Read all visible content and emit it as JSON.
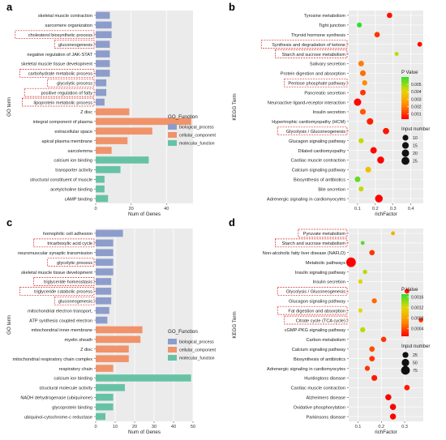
{
  "colors": {
    "biological_process": "#8d9dcb",
    "cellular_component": "#f0936a",
    "molecular_function": "#67c2a5",
    "highlight_box": "#d62728",
    "panel_bg": "#ebebeb",
    "pvalue_low": "#ff0000",
    "pvalue_high": "#2ee02e"
  },
  "chart_data": [
    {
      "panel": "a",
      "type": "bar",
      "orientation": "horizontal",
      "xlabel": "Num of Genes",
      "ylabel": "GO term",
      "xlim": [
        0,
        55
      ],
      "xticks": [
        0,
        20,
        40
      ],
      "legend_title": "GO_Function",
      "legend": [
        "biological_process",
        "cellular_component",
        "molecular_function"
      ],
      "categories": [
        "skeletal muscle contraction",
        "sarcomere organization",
        "cholesterol biosynthetic process",
        "gluconeogenesis",
        "negative regulation of JAK-STAT",
        "skeletal muscle tissue development",
        "carbohydrate metabolic process",
        "glycolytic process",
        "positive regulation of fatty",
        "lipoprotein metabolic process",
        "Z disc",
        "integral component of plasma",
        "extracellular space",
        "apical plasma membrane",
        "sarcolemma",
        "calcium ion binding",
        "transporter activity",
        "structural constituent of muscle",
        "acetylcholine binding",
        "cAMP binding"
      ],
      "values": [
        8,
        9,
        9,
        8,
        8,
        8,
        8,
        6,
        6,
        5,
        19,
        54,
        32,
        18,
        9,
        30,
        14,
        5,
        5,
        7
      ],
      "groups": [
        "biological_process",
        "biological_process",
        "biological_process",
        "biological_process",
        "biological_process",
        "biological_process",
        "biological_process",
        "biological_process",
        "biological_process",
        "biological_process",
        "cellular_component",
        "cellular_component",
        "cellular_component",
        "cellular_component",
        "cellular_component",
        "molecular_function",
        "molecular_function",
        "molecular_function",
        "molecular_function",
        "molecular_function"
      ],
      "highlighted": [
        2,
        3,
        6,
        7,
        8,
        9
      ]
    },
    {
      "panel": "b",
      "type": "scatter",
      "xlabel": "richFactor",
      "ylabel": "KEGG Term",
      "xlim": [
        0.05,
        0.47
      ],
      "xticks": [
        0.1,
        0.2,
        0.3,
        0.4
      ],
      "size_legend_title": "Input number",
      "size_legend": [
        10,
        15,
        20,
        25
      ],
      "color_legend_title": "P Value",
      "color_range": [
        0.0003,
        0.006
      ],
      "color_ticks": [
        0.005,
        0.004,
        0.003,
        0.002,
        0.001
      ],
      "categories": [
        "Tyrosine metabolism",
        "Tight junction",
        "Thyroid hormone synthesis",
        "Synthesis and degradation of ketone",
        "Starch and sucrose metabolism",
        "Salivary secretion",
        "Protein digestion and absorption",
        "Pentose phosphate pathway",
        "Pancreatic secretion",
        "Neuroactive ligand-receptor interaction",
        "Insulin secretion",
        "Hypertrophic cardiomyopathy (HCM)",
        "Glycolysis / Gluconeogenesis",
        "Glucagon signaling pathway",
        "Dilated cardiomyopathy",
        "Cardiac muscle contraction",
        "Calcium signaling pathway",
        "Biosynthesis of antibiotics",
        "Bile secretion",
        "Adrenergic signaling in cardiomyocytes"
      ],
      "x": [
        0.28,
        0.11,
        0.21,
        0.45,
        0.32,
        0.12,
        0.13,
        0.14,
        0.13,
        0.1,
        0.13,
        0.17,
        0.26,
        0.12,
        0.19,
        0.23,
        0.16,
        0.1,
        0.12,
        0.22
      ],
      "input_number": [
        8,
        6,
        8,
        5,
        3,
        9,
        10,
        7,
        9,
        20,
        10,
        14,
        13,
        7,
        14,
        17,
        10,
        9,
        6,
        23
      ],
      "pvalue": [
        0.0005,
        0.006,
        0.001,
        0.0004,
        0.0045,
        0.002,
        0.0018,
        0.0022,
        0.001,
        0.0004,
        0.0015,
        0.0007,
        0.0006,
        0.0045,
        0.0004,
        0.0003,
        0.0035,
        0.0055,
        0.0045,
        0.0003
      ],
      "highlighted": [
        3,
        4,
        7,
        12
      ]
    },
    {
      "panel": "c",
      "type": "bar",
      "orientation": "horizontal",
      "xlabel": "Num of Genes",
      "ylabel": "GO term",
      "xlim": [
        0,
        50
      ],
      "xticks": [
        0,
        10,
        20,
        30,
        40,
        50
      ],
      "legend_title": "GO_Function",
      "legend": [
        "biological_process",
        "cellular_component",
        "molecular_function"
      ],
      "categories": [
        "homophilic cell adhesion",
        "tricarboxylic acid cycle",
        "neuromuscular synaptic transmission",
        "glycolytic process",
        "skeletal muscle tissue development",
        "triglyceride homeostasis",
        "triglyceride catabolic process",
        "gluconeogenesis",
        "mitochondrial electron transport,",
        "ATP synthesis coupled electron",
        "mitochondrial inner membrane",
        "myelin sheath",
        "Z disc",
        "mitochondrial respiratory chain complex",
        "respiratory chain",
        "calcium ion binding",
        "structural molecule activity",
        "NADH dehydrogenase (ubiquinone)",
        "glycoprotein binding",
        "ubiquinol-cytochrome-c reductase"
      ],
      "values": [
        14,
        9,
        9,
        9,
        9,
        8,
        8,
        8,
        7,
        6,
        24,
        23,
        17,
        17,
        9,
        49,
        15,
        9,
        9,
        5
      ],
      "groups": [
        "biological_process",
        "biological_process",
        "biological_process",
        "biological_process",
        "biological_process",
        "biological_process",
        "biological_process",
        "biological_process",
        "biological_process",
        "biological_process",
        "cellular_component",
        "cellular_component",
        "cellular_component",
        "cellular_component",
        "cellular_component",
        "molecular_function",
        "molecular_function",
        "molecular_function",
        "molecular_function",
        "molecular_function"
      ],
      "highlighted": [
        1,
        3,
        5,
        6,
        7
      ]
    },
    {
      "panel": "d",
      "type": "scatter",
      "xlabel": "richFactor",
      "ylabel": "KEGG Term",
      "xlim": [
        0.06,
        0.38
      ],
      "xticks": [
        0.1,
        0.2,
        0.3
      ],
      "size_legend_title": "Input number",
      "size_legend": [
        25,
        50,
        75
      ],
      "color_legend_title": "P Value",
      "color_range": [
        0.0001,
        0.0017
      ],
      "color_ticks": [
        0.0016,
        0.0012,
        0.0008,
        0.0004
      ],
      "categories": [
        "Pyruvate metabolism",
        "Starch and sucrose metabolism",
        "Non-alcoholic fatty liver disease (NAFLD)",
        "Metabolic pathways",
        "Insulin signaling pathway",
        "Insulin secretion",
        "Glycolysis / Gluconeogenesis",
        "Glucagon signaling pathway",
        "Fat digestion and absorption",
        "Citrate cycle (TCA cycle)",
        "cGMP-PKG signaling pathway",
        "Carbon metabolism",
        "Calcium signaling pathway",
        "Biosynthesis of antibiotics",
        "Adrenergic signaling in cardiomyocytes",
        "Huntingtons disease",
        "Cardiac muscle contraction",
        "Alzheimers disease",
        "Oxidative phosphorylation",
        "Parkinsons disease"
      ],
      "x": [
        0.25,
        0.12,
        0.16,
        0.07,
        0.13,
        0.11,
        0.31,
        0.17,
        0.11,
        0.37,
        0.12,
        0.21,
        0.16,
        0.16,
        0.14,
        0.17,
        0.31,
        0.23,
        0.25,
        0.25
      ],
      "input_number": [
        6,
        5,
        18,
        95,
        10,
        10,
        14,
        15,
        8,
        10,
        16,
        18,
        19,
        20,
        15,
        23,
        20,
        27,
        28,
        26
      ],
      "pvalue": [
        0.0009,
        0.0016,
        0.0003,
        0.0001,
        0.0013,
        0.0012,
        0.0002,
        0.0005,
        0.0012,
        0.0003,
        0.0013,
        0.0003,
        0.0004,
        0.0003,
        0.0003,
        0.0002,
        0.0002,
        0.0001,
        0.0001,
        0.0001
      ],
      "highlighted": [
        0,
        1,
        6,
        8,
        9
      ]
    }
  ]
}
